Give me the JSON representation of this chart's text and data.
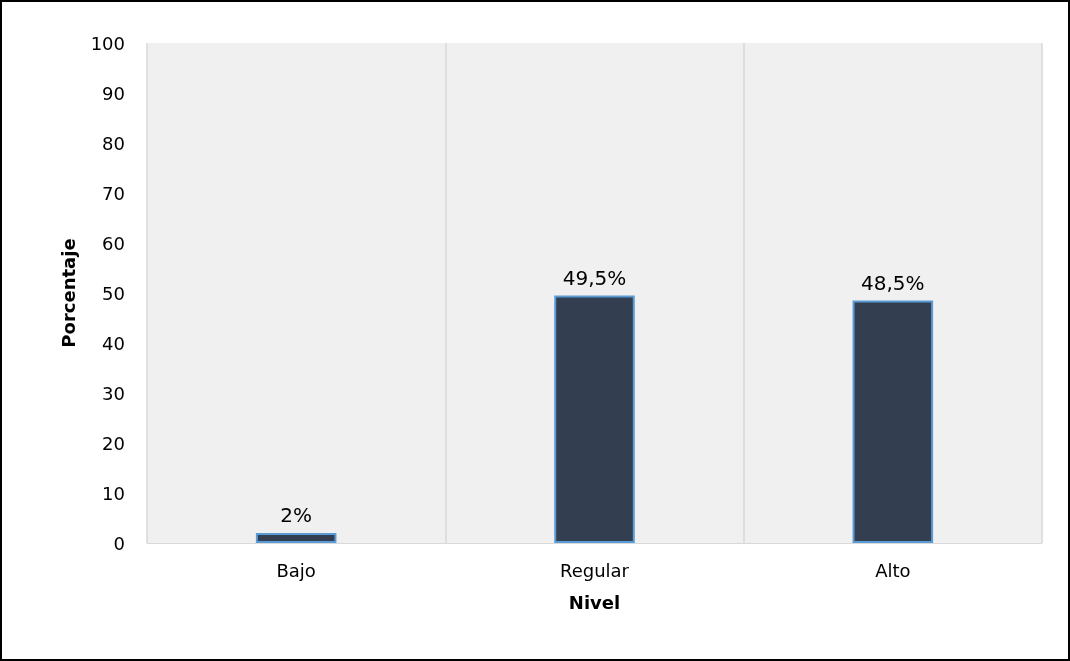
{
  "chart_data": {
    "type": "bar",
    "xlabel": "Nivel",
    "ylabel": "Porcentaje",
    "categories": [
      "Bajo",
      "Regular",
      "Alto"
    ],
    "values": [
      2,
      49.5,
      48.5
    ],
    "value_labels": [
      "2%",
      "49,5%",
      "48,5%"
    ],
    "color": "#333f50",
    "ylim": [
      0,
      100
    ],
    "yticks": [
      0,
      10,
      20,
      30,
      40,
      50,
      60,
      70,
      80,
      90,
      100
    ],
    "grid": "x"
  }
}
